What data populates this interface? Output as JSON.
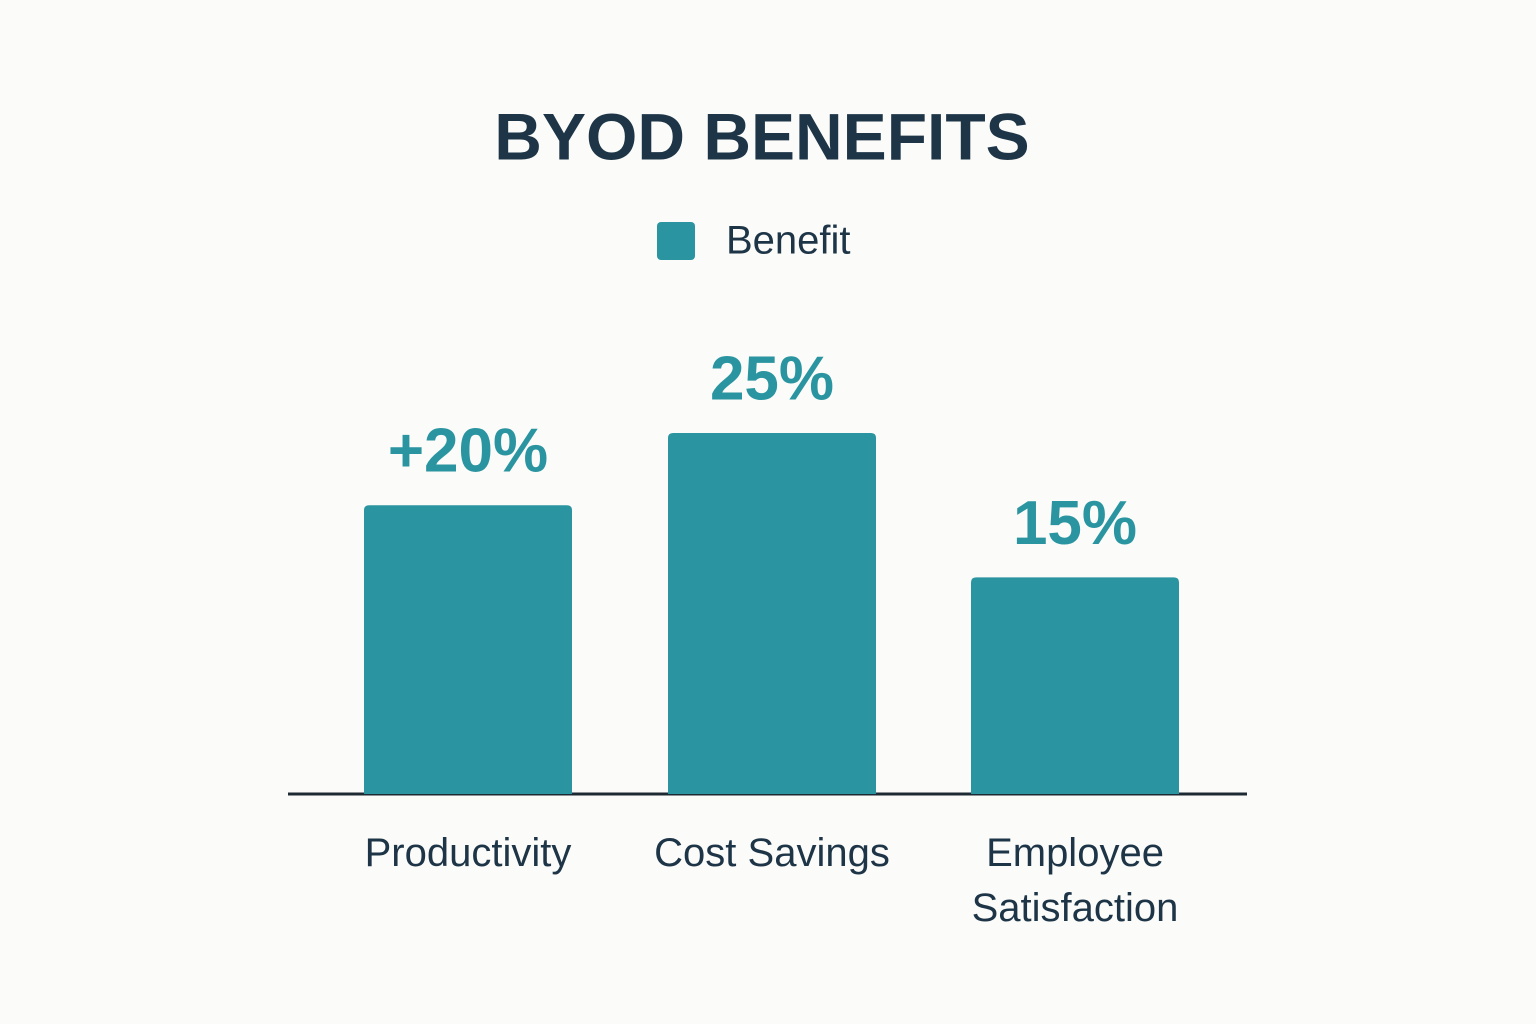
{
  "chart_data": {
    "type": "bar",
    "title": "BYOD BENEFITS",
    "categories": [
      "Productivity",
      "Cost Savings",
      "Employee Satisfaction"
    ],
    "series": [
      {
        "name": "Benefit",
        "color": "#2a95a0",
        "values": [
          20,
          25,
          15
        ],
        "value_labels": [
          "+20%",
          "25%",
          "15%"
        ]
      }
    ]
  }
}
